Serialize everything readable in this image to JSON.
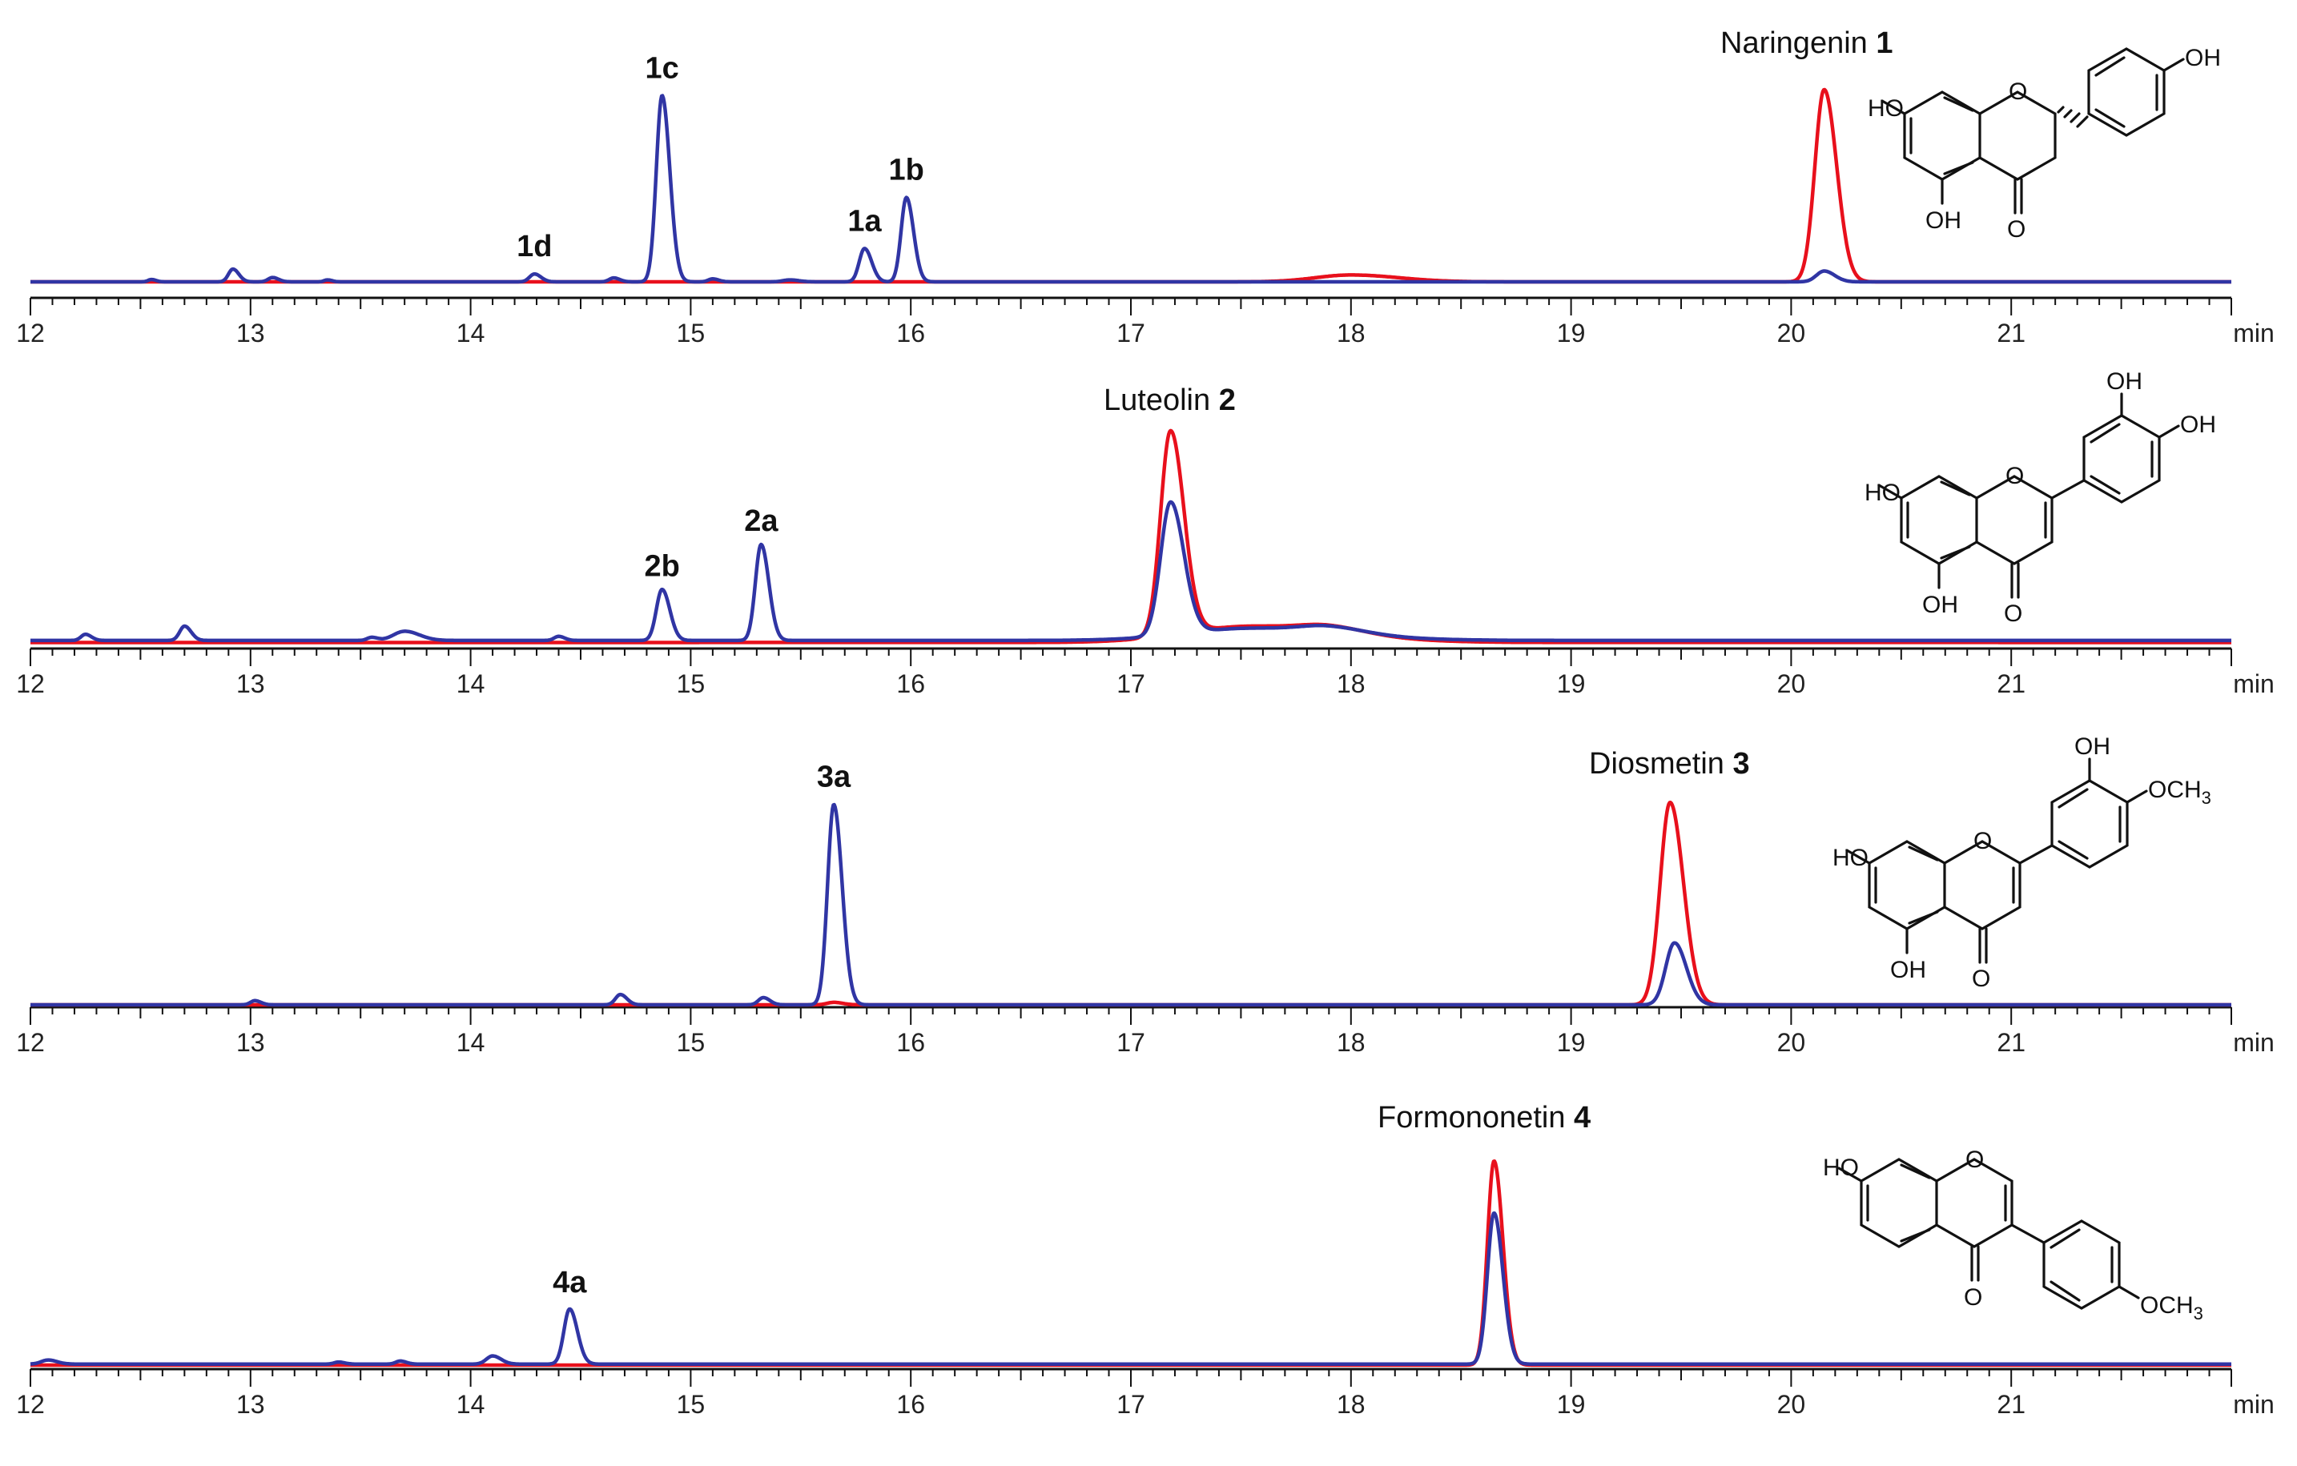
{
  "colors": {
    "red_trace": "#e8101c",
    "blue_trace": "#3035a4",
    "axis": "#111111"
  },
  "chart_data": [
    {
      "type": "line",
      "panel": "naringenin",
      "title": "Naringenin",
      "compound_number": "1",
      "xlabel": "min",
      "xlim": [
        12,
        22
      ],
      "x_ticks": [
        12,
        13,
        14,
        15,
        16,
        17,
        18,
        19,
        20,
        21
      ],
      "y_unit": "relative intensity",
      "ylim": [
        0,
        100
      ],
      "series": [
        {
          "name": "red",
          "color": "#e8101c",
          "baseline": 0,
          "peaks": [
            [
              18.0,
              3.5,
              0.16
            ],
            [
              20.15,
              98,
              0.042
            ]
          ]
        },
        {
          "name": "blue",
          "color": "#3035a4",
          "baseline": 0,
          "peaks": [
            [
              12.55,
              1.2,
              0.015
            ],
            [
              12.92,
              6.5,
              0.02
            ],
            [
              13.1,
              2.2,
              0.02
            ],
            [
              13.35,
              1,
              0.015
            ],
            [
              14.29,
              4,
              0.022
            ],
            [
              14.65,
              2,
              0.02
            ],
            [
              14.87,
              95,
              0.026
            ],
            [
              15.1,
              1.5,
              0.02
            ],
            [
              15.45,
              1,
              0.03
            ],
            [
              15.79,
              17,
              0.024
            ],
            [
              15.98,
              43,
              0.024
            ],
            [
              20.15,
              5.5,
              0.035
            ]
          ]
        }
      ],
      "annotations": [
        {
          "text": "1d",
          "x": 14.29,
          "y": 4
        },
        {
          "text": "1c",
          "x": 14.87,
          "y": 95
        },
        {
          "text": "1a",
          "x": 15.79,
          "y": 17
        },
        {
          "text": "1b",
          "x": 15.98,
          "y": 43
        }
      ]
    },
    {
      "type": "line",
      "panel": "luteolin",
      "title": "Luteolin",
      "compound_number": "2",
      "xlabel": "min",
      "xlim": [
        12,
        22
      ],
      "x_ticks": [
        12,
        13,
        14,
        15,
        16,
        17,
        18,
        19,
        20,
        21
      ],
      "y_unit": "relative intensity",
      "ylim": [
        0,
        100
      ],
      "series": [
        {
          "name": "red",
          "color": "#e8101c",
          "baseline": 1,
          "peaks": [
            [
              17.18,
              100,
              0.045
            ],
            [
              17.55,
              8,
              0.3
            ],
            [
              17.9,
              3,
              0.12
            ]
          ]
        },
        {
          "name": "blue",
          "color": "#3035a4",
          "baseline": 2,
          "peaks": [
            [
              12.25,
              3,
              0.02
            ],
            [
              12.7,
              7,
              0.022
            ],
            [
              13.55,
              1.5,
              0.02
            ],
            [
              13.7,
              4.5,
              0.05
            ],
            [
              14.4,
              2,
              0.02
            ],
            [
              14.87,
              25,
              0.026
            ],
            [
              15.32,
              47,
              0.026
            ],
            [
              17.18,
              65,
              0.045
            ],
            [
              17.55,
              6,
              0.3
            ],
            [
              17.9,
              3,
              0.12
            ]
          ]
        }
      ],
      "annotations": [
        {
          "text": "2b",
          "x": 14.87,
          "y": 25
        },
        {
          "text": "2a",
          "x": 15.32,
          "y": 47
        }
      ]
    },
    {
      "type": "line",
      "panel": "diosmetin",
      "title": "Diosmetin",
      "compound_number": "3",
      "xlabel": "min",
      "xlim": [
        12,
        22
      ],
      "x_ticks": [
        12,
        13,
        14,
        15,
        16,
        17,
        18,
        19,
        20,
        21
      ],
      "y_unit": "relative intensity",
      "ylim": [
        0,
        100
      ],
      "series": [
        {
          "name": "red",
          "color": "#e8101c",
          "baseline": 0,
          "peaks": [
            [
              15.65,
              1.2,
              0.03
            ],
            [
              19.45,
              98,
              0.045
            ]
          ]
        },
        {
          "name": "blue",
          "color": "#3035a4",
          "baseline": 0,
          "peaks": [
            [
              13.02,
              2,
              0.02
            ],
            [
              14.68,
              5,
              0.022
            ],
            [
              15.33,
              3.5,
              0.022
            ],
            [
              15.65,
              97,
              0.028
            ],
            [
              19.47,
              30,
              0.04
            ]
          ]
        }
      ],
      "annotations": [
        {
          "text": "3a",
          "x": 15.65,
          "y": 97
        }
      ]
    },
    {
      "type": "line",
      "panel": "formononetin",
      "title": "Formononetin",
      "compound_number": "4",
      "xlabel": "min",
      "xlim": [
        12,
        22
      ],
      "x_ticks": [
        12,
        13,
        14,
        15,
        16,
        17,
        18,
        19,
        20,
        21
      ],
      "y_unit": "relative intensity",
      "ylim": [
        0,
        100
      ],
      "series": [
        {
          "name": "red",
          "color": "#e8101c",
          "baseline": 0,
          "peaks": [
            [
              18.65,
              100,
              0.03
            ]
          ]
        },
        {
          "name": "blue",
          "color": "#3035a4",
          "baseline": 0.5,
          "peaks": [
            [
              12.08,
              2,
              0.03
            ],
            [
              13.4,
              1,
              0.02
            ],
            [
              13.68,
              1.5,
              0.02
            ],
            [
              14.1,
              4,
              0.028
            ],
            [
              14.45,
              27,
              0.026
            ],
            [
              18.65,
              74,
              0.03
            ]
          ]
        }
      ],
      "annotations": [
        {
          "text": "4a",
          "x": 14.45,
          "y": 27
        }
      ]
    }
  ],
  "structures": {
    "naringenin": {
      "labels": [
        "HO",
        "OH",
        "OH",
        "O",
        "O"
      ]
    },
    "luteolin": {
      "labels": [
        "HO",
        "OH",
        "OH",
        "OH",
        "O",
        "O"
      ]
    },
    "diosmetin": {
      "labels": [
        "HO",
        "OH",
        "OCH",
        "3",
        "OH",
        "O",
        "O"
      ]
    },
    "formononetin": {
      "labels": [
        "HO",
        "O",
        "O",
        "OCH",
        "3"
      ]
    }
  }
}
